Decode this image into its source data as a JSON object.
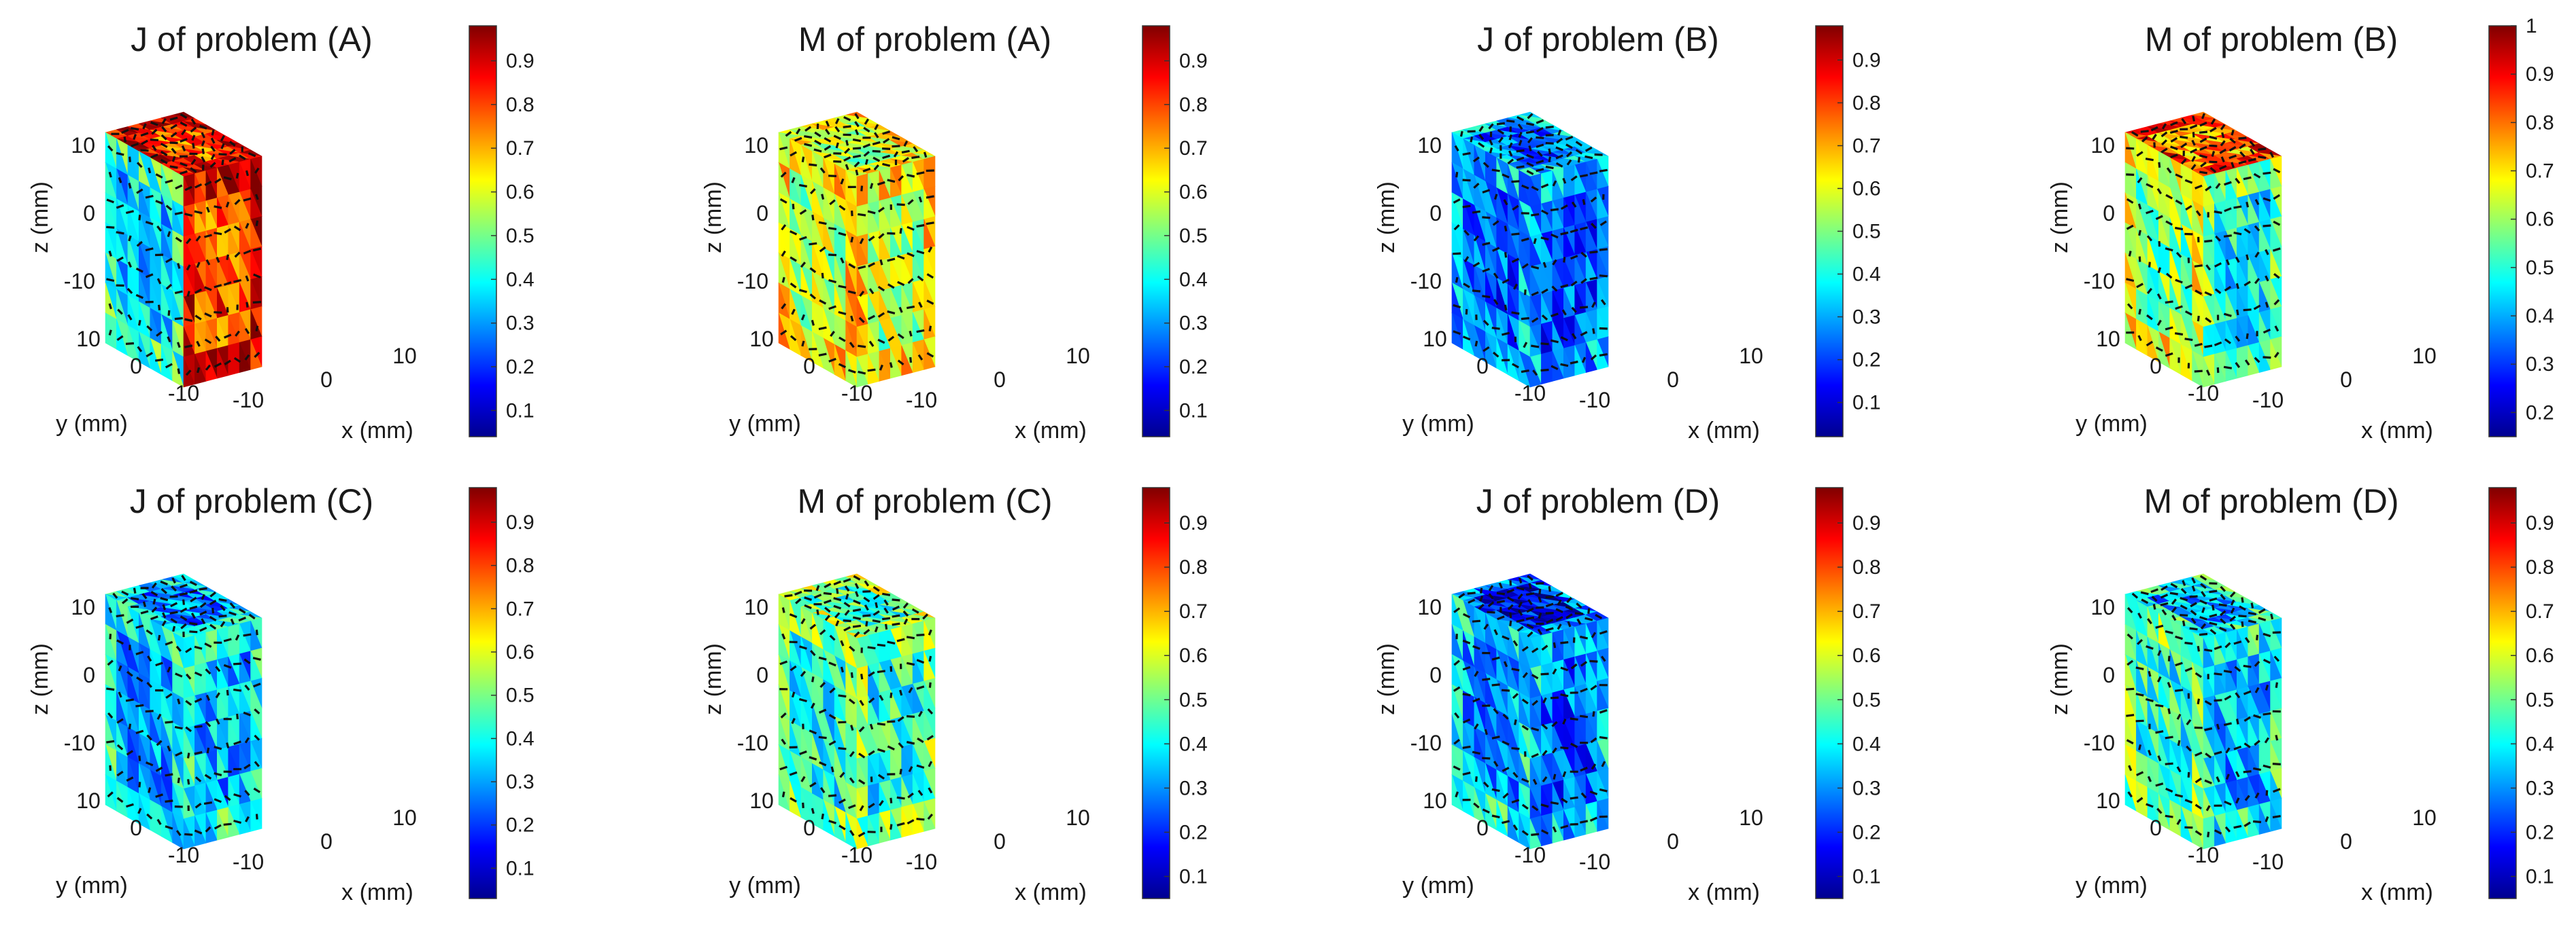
{
  "chart_data": [
    {
      "type": "heatmap",
      "title": "J of problem (A)",
      "xlabel": "x (mm)",
      "ylabel": "y (mm)",
      "zlabel": "z (mm)",
      "ticks": {
        "x": [
          "-10",
          "0",
          "10"
        ],
        "y": [
          "10",
          "0",
          "-10"
        ],
        "z": [
          "10",
          "0",
          "-10"
        ]
      },
      "colorbar": {
        "ticks": [
          "0.1",
          "0.2",
          "0.3",
          "0.4",
          "0.5",
          "0.6",
          "0.7",
          "0.8",
          "0.9"
        ],
        "range": [
          0.04,
          0.98
        ]
      },
      "face_levels": {
        "top": 0.8,
        "left": 0.33,
        "right": 0.8
      }
    },
    {
      "type": "heatmap",
      "title": "M of problem (A)",
      "xlabel": "x (mm)",
      "ylabel": "y (mm)",
      "zlabel": "z (mm)",
      "ticks": {
        "x": [
          "-10",
          "0",
          "10"
        ],
        "y": [
          "10",
          "0",
          "-10"
        ],
        "z": [
          "10",
          "0",
          "-10"
        ]
      },
      "colorbar": {
        "ticks": [
          "0.1",
          "0.2",
          "0.3",
          "0.4",
          "0.5",
          "0.6",
          "0.7",
          "0.8",
          "0.9"
        ],
        "range": [
          0.04,
          0.98
        ]
      },
      "face_levels": {
        "top": 0.55,
        "left": 0.55,
        "right": 0.55
      }
    },
    {
      "type": "heatmap",
      "title": "J of problem (B)",
      "xlabel": "x (mm)",
      "ylabel": "y (mm)",
      "zlabel": "z (mm)",
      "ticks": {
        "x": [
          "-10",
          "0",
          "10"
        ],
        "y": [
          "10",
          "0",
          "-10"
        ],
        "z": [
          "10",
          "0",
          "-10"
        ]
      },
      "colorbar": {
        "ticks": [
          "0.1",
          "0.2",
          "0.3",
          "0.4",
          "0.5",
          "0.6",
          "0.7",
          "0.8",
          "0.9"
        ],
        "range": [
          0.02,
          0.98
        ]
      },
      "face_levels": {
        "top": 0.22,
        "left": 0.2,
        "right": 0.2
      }
    },
    {
      "type": "heatmap",
      "title": "M of problem (B)",
      "xlabel": "x (mm)",
      "ylabel": "y (mm)",
      "zlabel": "z (mm)",
      "ticks": {
        "x": [
          "-10",
          "0",
          "10"
        ],
        "y": [
          "10",
          "0",
          "-10"
        ],
        "z": [
          "10",
          "0",
          "-10"
        ]
      },
      "colorbar": {
        "ticks": [
          "0.2",
          "0.3",
          "0.4",
          "0.5",
          "0.6",
          "0.7",
          "0.8",
          "0.9",
          "1"
        ],
        "range": [
          0.15,
          1.0
        ]
      },
      "face_levels": {
        "top": 0.72,
        "left": 0.5,
        "right": 0.38
      }
    },
    {
      "type": "heatmap",
      "title": "J of problem (C)",
      "xlabel": "x (mm)",
      "ylabel": "y (mm)",
      "zlabel": "z (mm)",
      "ticks": {
        "x": [
          "-10",
          "0",
          "10"
        ],
        "y": [
          "10",
          "0",
          "-10"
        ],
        "z": [
          "10",
          "0",
          "-10"
        ]
      },
      "colorbar": {
        "ticks": [
          "0.1",
          "0.2",
          "0.3",
          "0.4",
          "0.5",
          "0.6",
          "0.7",
          "0.8",
          "0.9"
        ],
        "range": [
          0.03,
          0.98
        ]
      },
      "face_levels": {
        "top": 0.25,
        "left": 0.3,
        "right": 0.3
      }
    },
    {
      "type": "heatmap",
      "title": "M of problem (C)",
      "xlabel": "x (mm)",
      "ylabel": "y (mm)",
      "zlabel": "z (mm)",
      "ticks": {
        "x": [
          "-10",
          "0",
          "10"
        ],
        "y": [
          "10",
          "0",
          "-10"
        ],
        "z": [
          "10",
          "0",
          "-10"
        ]
      },
      "colorbar": {
        "ticks": [
          "0.1",
          "0.2",
          "0.3",
          "0.4",
          "0.5",
          "0.6",
          "0.7",
          "0.8",
          "0.9"
        ],
        "range": [
          0.05,
          0.98
        ]
      },
      "face_levels": {
        "top": 0.45,
        "left": 0.4,
        "right": 0.4
      }
    },
    {
      "type": "heatmap",
      "title": "J of problem (D)",
      "xlabel": "x (mm)",
      "ylabel": "y (mm)",
      "zlabel": "z (mm)",
      "ticks": {
        "x": [
          "-10",
          "0",
          "10"
        ],
        "y": [
          "10",
          "0",
          "-10"
        ],
        "z": [
          "10",
          "0",
          "-10"
        ]
      },
      "colorbar": {
        "ticks": [
          "0.1",
          "0.2",
          "0.3",
          "0.4",
          "0.5",
          "0.6",
          "0.7",
          "0.8",
          "0.9"
        ],
        "range": [
          0.05,
          0.98
        ]
      },
      "face_levels": {
        "top": 0.12,
        "left": 0.28,
        "right": 0.22
      }
    },
    {
      "type": "heatmap",
      "title": "M of problem (D)",
      "xlabel": "x (mm)",
      "ylabel": "y (mm)",
      "zlabel": "z (mm)",
      "ticks": {
        "x": [
          "-10",
          "0",
          "10"
        ],
        "y": [
          "10",
          "0",
          "-10"
        ],
        "z": [
          "10",
          "0",
          "-10"
        ]
      },
      "colorbar": {
        "ticks": [
          "0.1",
          "0.2",
          "0.3",
          "0.4",
          "0.5",
          "0.6",
          "0.7",
          "0.8",
          "0.9"
        ],
        "range": [
          0.05,
          0.98
        ]
      },
      "face_levels": {
        "top": 0.3,
        "left": 0.4,
        "right": 0.3
      }
    }
  ]
}
